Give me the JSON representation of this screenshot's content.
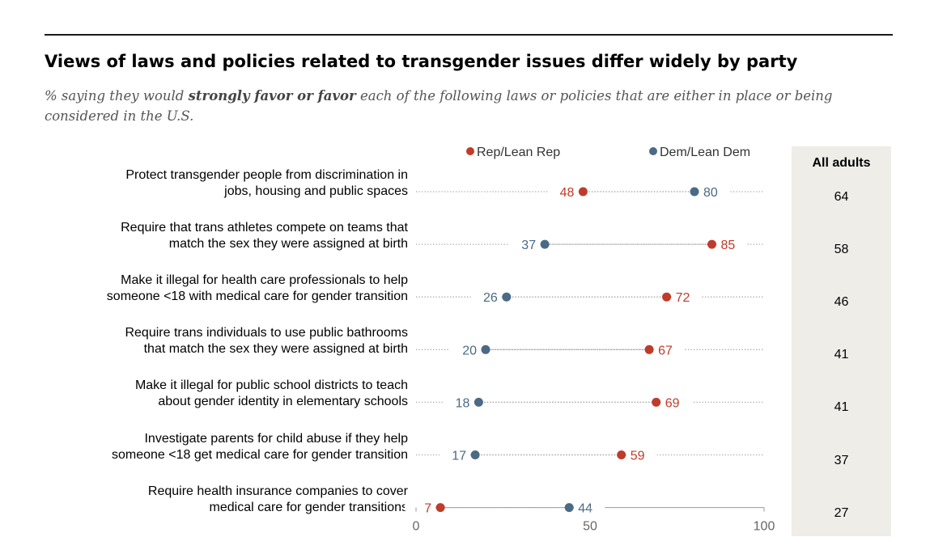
{
  "title": "Views of laws and policies related to transgender issues differ widely by party",
  "subtitle_pre": "% saying they would ",
  "subtitle_bold": "strongly favor or favor",
  "subtitle_post": " each of the following laws or policies that are either in place or being considered in the U.S.",
  "colors": {
    "rep": "#bf3b2a",
    "dem": "#4a6a85",
    "dots": "#a9a9a9",
    "panel": "#eeede8"
  },
  "chart_data": {
    "type": "scatter",
    "subtype": "dot-plot",
    "legend": [
      {
        "name": "Rep/Lean Rep",
        "color": "#bf3b2a"
      },
      {
        "name": "Dem/Lean Dem",
        "color": "#4a6a85"
      }
    ],
    "all_adults_label": "All adults",
    "xlim": [
      0,
      100
    ],
    "x_ticks": [
      "0",
      "50",
      "100"
    ],
    "items": [
      {
        "label": [
          "Protect transgender people from discrimination in",
          "jobs, housing and public spaces"
        ],
        "rep": 48,
        "dem": 80,
        "all": 64
      },
      {
        "label": [
          "Require that trans athletes compete on teams that",
          "match the sex they were assigned at birth"
        ],
        "rep": 85,
        "dem": 37,
        "all": 58
      },
      {
        "label": [
          "Make it illegal for health care professionals to help",
          "someone <18 with medical care for gender transition"
        ],
        "rep": 72,
        "dem": 26,
        "all": 46
      },
      {
        "label": [
          "Require trans individuals to use public bathrooms",
          "that match the sex they were assigned at birth"
        ],
        "rep": 67,
        "dem": 20,
        "all": 41
      },
      {
        "label": [
          "Make it illegal for public school districts to teach",
          "about gender identity in elementary schools"
        ],
        "rep": 69,
        "dem": 18,
        "all": 41
      },
      {
        "label": [
          "Investigate parents for child abuse if they help",
          "someone <18 get medical care for gender transition"
        ],
        "rep": 59,
        "dem": 17,
        "all": 37
      },
      {
        "label": [
          "Require health insurance companies to cover",
          "medical care for gender transitions"
        ],
        "rep": 7,
        "dem": 44,
        "all": 27
      }
    ]
  }
}
